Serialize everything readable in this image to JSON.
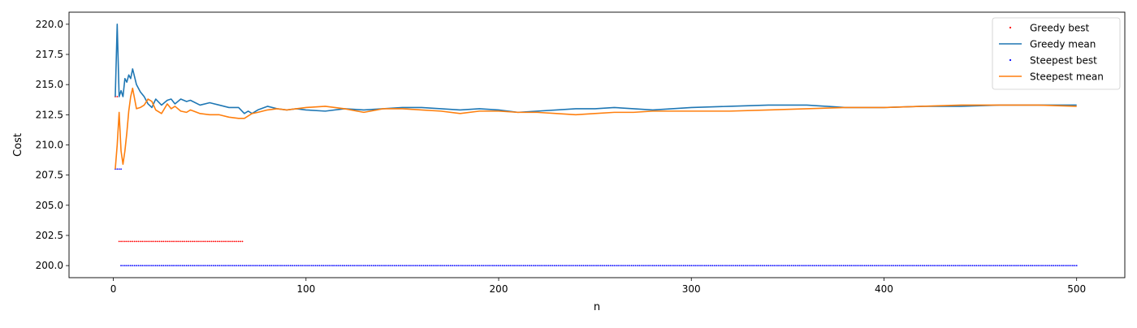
{
  "chart_data": {
    "type": "line",
    "xlabel": "n",
    "ylabel": "Cost",
    "xlim": [
      -23,
      525
    ],
    "ylim": [
      199.0,
      221.0
    ],
    "xticks": [
      0,
      100,
      200,
      300,
      400,
      500
    ],
    "xtick_labels": [
      "0",
      "100",
      "200",
      "300",
      "400",
      "500"
    ],
    "yticks": [
      200.0,
      202.5,
      205.0,
      207.5,
      210.0,
      212.5,
      215.0,
      217.5,
      220.0
    ],
    "ytick_labels": [
      "200.0",
      "202.5",
      "205.0",
      "207.5",
      "210.0",
      "212.5",
      "215.0",
      "217.5",
      "220.0"
    ],
    "grid": false,
    "legend_position": "top-right",
    "legend": [
      "Greedy best",
      "Greedy mean",
      "Steepest best",
      "Steepest mean"
    ],
    "series": [
      {
        "name": "Greedy best",
        "kind": "points",
        "color": "#ff0000",
        "segments": [
          {
            "x_from": 1,
            "x_to": 2,
            "y": 214.0
          },
          {
            "x_from": 3,
            "x_to": 67,
            "y": 202.0
          }
        ]
      },
      {
        "name": "Greedy mean",
        "kind": "line",
        "color": "#1f77b4",
        "x": [
          1,
          2,
          3,
          4,
          5,
          6,
          7,
          8,
          9,
          10,
          12,
          14,
          16,
          18,
          20,
          22,
          25,
          28,
          30,
          32,
          35,
          38,
          40,
          45,
          50,
          55,
          60,
          65,
          68,
          70,
          72,
          75,
          80,
          85,
          90,
          95,
          100,
          110,
          120,
          130,
          140,
          150,
          160,
          170,
          180,
          190,
          200,
          210,
          220,
          230,
          240,
          250,
          260,
          270,
          280,
          290,
          300,
          320,
          340,
          360,
          380,
          400,
          420,
          440,
          460,
          480,
          500
        ],
        "y": [
          214.0,
          220.0,
          214.0,
          214.5,
          214.0,
          215.5,
          215.2,
          215.8,
          215.5,
          216.3,
          215.0,
          214.4,
          214.0,
          213.4,
          213.1,
          213.8,
          213.3,
          213.7,
          213.8,
          213.4,
          213.8,
          213.6,
          213.7,
          213.3,
          213.5,
          213.3,
          213.1,
          213.1,
          212.6,
          212.8,
          212.6,
          212.9,
          213.2,
          213.0,
          212.9,
          213.0,
          212.9,
          212.8,
          213.0,
          212.9,
          213.0,
          213.1,
          213.1,
          213.0,
          212.9,
          213.0,
          212.9,
          212.7,
          212.8,
          212.9,
          213.0,
          213.0,
          213.1,
          213.0,
          212.9,
          213.0,
          213.1,
          213.2,
          213.3,
          213.3,
          213.1,
          213.1,
          213.2,
          213.2,
          213.3,
          213.3,
          213.3
        ]
      },
      {
        "name": "Steepest best",
        "kind": "points",
        "color": "#0000ff",
        "segments": [
          {
            "x_from": 1,
            "x_to": 4,
            "y": 208.0
          },
          {
            "x_from": 4,
            "x_to": 500,
            "y": 200.0
          }
        ]
      },
      {
        "name": "Steepest mean",
        "kind": "line",
        "color": "#ff7f0e",
        "x": [
          1,
          2,
          3,
          4,
          5,
          6,
          7,
          8,
          9,
          10,
          12,
          14,
          16,
          18,
          20,
          22,
          25,
          28,
          30,
          32,
          35,
          38,
          40,
          45,
          50,
          55,
          60,
          65,
          68,
          70,
          72,
          75,
          80,
          85,
          90,
          95,
          100,
          110,
          120,
          130,
          140,
          150,
          160,
          170,
          180,
          190,
          200,
          210,
          220,
          230,
          240,
          250,
          260,
          270,
          280,
          290,
          300,
          320,
          340,
          360,
          380,
          400,
          420,
          440,
          460,
          480,
          500
        ],
        "y": [
          208.0,
          210.0,
          212.7,
          209.5,
          208.4,
          209.5,
          211.0,
          212.8,
          214.0,
          214.7,
          213.0,
          213.1,
          213.3,
          213.8,
          213.6,
          212.9,
          212.6,
          213.4,
          213.0,
          213.2,
          212.8,
          212.7,
          212.9,
          212.6,
          212.5,
          212.5,
          212.3,
          212.2,
          212.2,
          212.4,
          212.6,
          212.7,
          212.9,
          213.0,
          212.9,
          213.0,
          213.1,
          213.2,
          213.0,
          212.7,
          213.0,
          213.0,
          212.9,
          212.8,
          212.6,
          212.8,
          212.8,
          212.7,
          212.7,
          212.6,
          212.5,
          212.6,
          212.7,
          212.7,
          212.8,
          212.8,
          212.8,
          212.8,
          212.9,
          213.0,
          213.1,
          213.1,
          213.2,
          213.3,
          213.3,
          213.3,
          213.2
        ]
      }
    ]
  }
}
